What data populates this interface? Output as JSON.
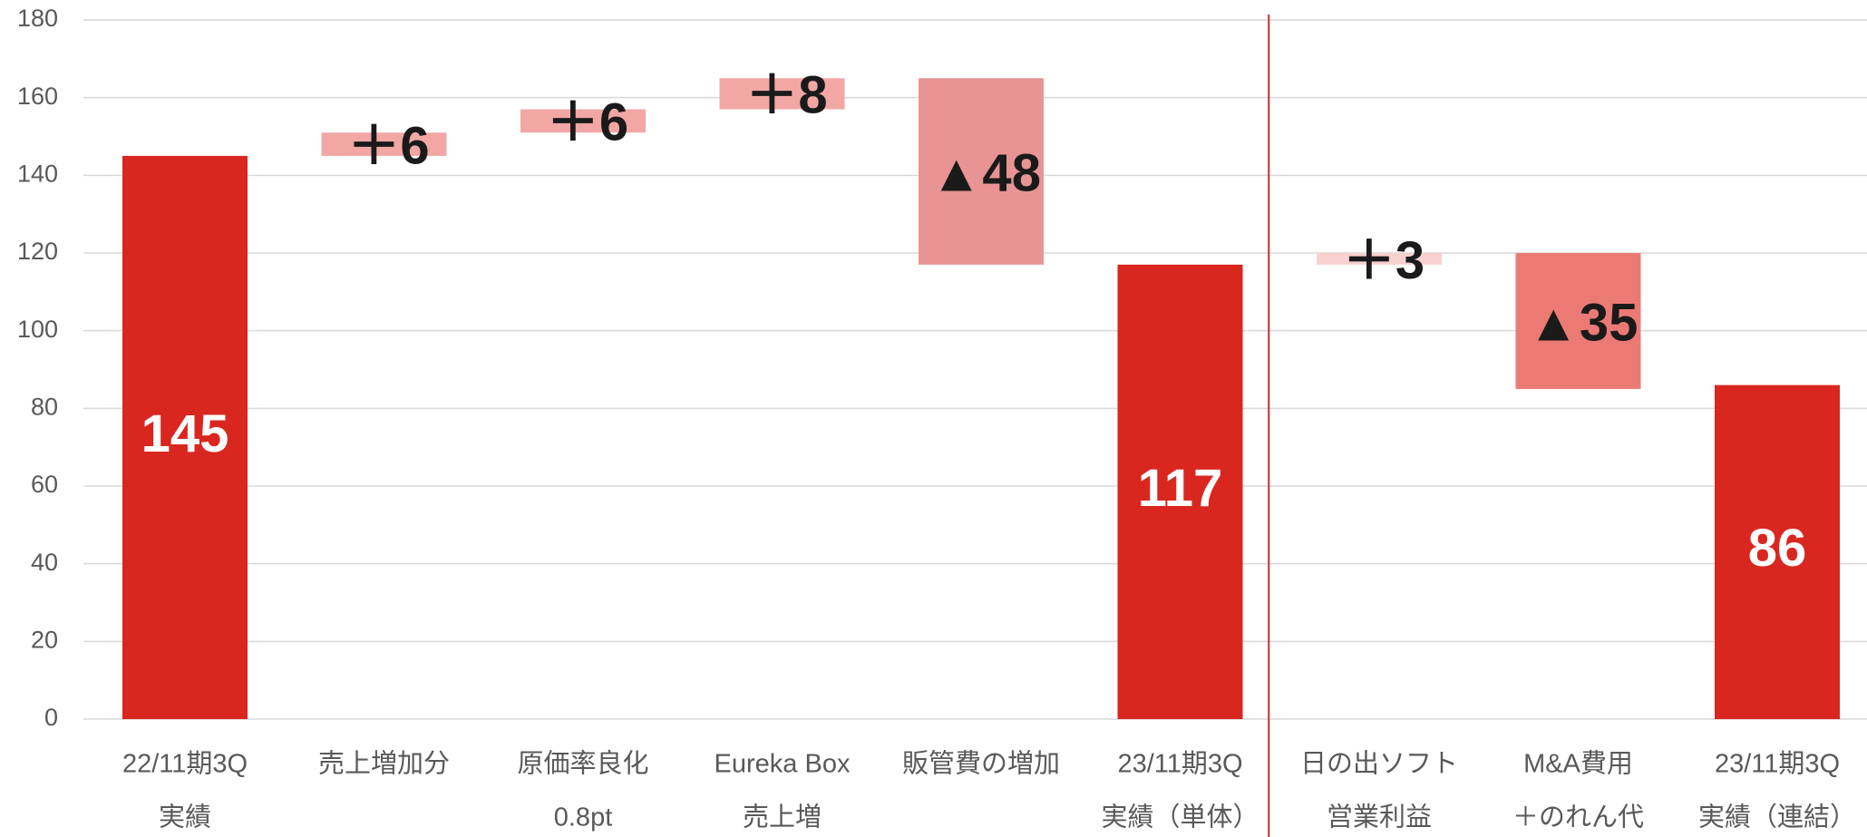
{
  "chart_data": {
    "type": "waterfall",
    "categories": [
      [
        "22/11期3Q",
        "実績"
      ],
      [
        "売上増加分"
      ],
      [
        "原価率良化",
        "0.8pt"
      ],
      [
        "Eureka Box",
        "売上増"
      ],
      [
        "販管費の増加"
      ],
      [
        "23/11期3Q",
        "実績（単体）"
      ],
      [
        "日の出ソフト",
        "営業利益"
      ],
      [
        "M&A費用",
        "＋のれん代"
      ],
      [
        "23/11期3Q",
        "実績（連結）"
      ]
    ],
    "values": [
      145,
      6,
      6,
      8,
      -48,
      117,
      3,
      -35,
      86
    ],
    "value_labels": [
      "145",
      "＋6",
      "＋6",
      "＋8",
      "▲48",
      "117",
      "＋3",
      "▲35",
      "86"
    ],
    "kinds": [
      "total",
      "delta",
      "delta",
      "delta",
      "delta",
      "total",
      "delta",
      "delta",
      "total"
    ],
    "colors": [
      "#d9261f",
      "#f2a7a5",
      "#f2a7a5",
      "#f2a7a5",
      "#e89494",
      "#d9261f",
      "#f9d0d0",
      "#ec7a74",
      "#d9261f"
    ],
    "ylim": [
      0,
      180
    ],
    "yticks": [
      0,
      20,
      40,
      60,
      80,
      100,
      120,
      140,
      160,
      180
    ],
    "grid": true
  }
}
